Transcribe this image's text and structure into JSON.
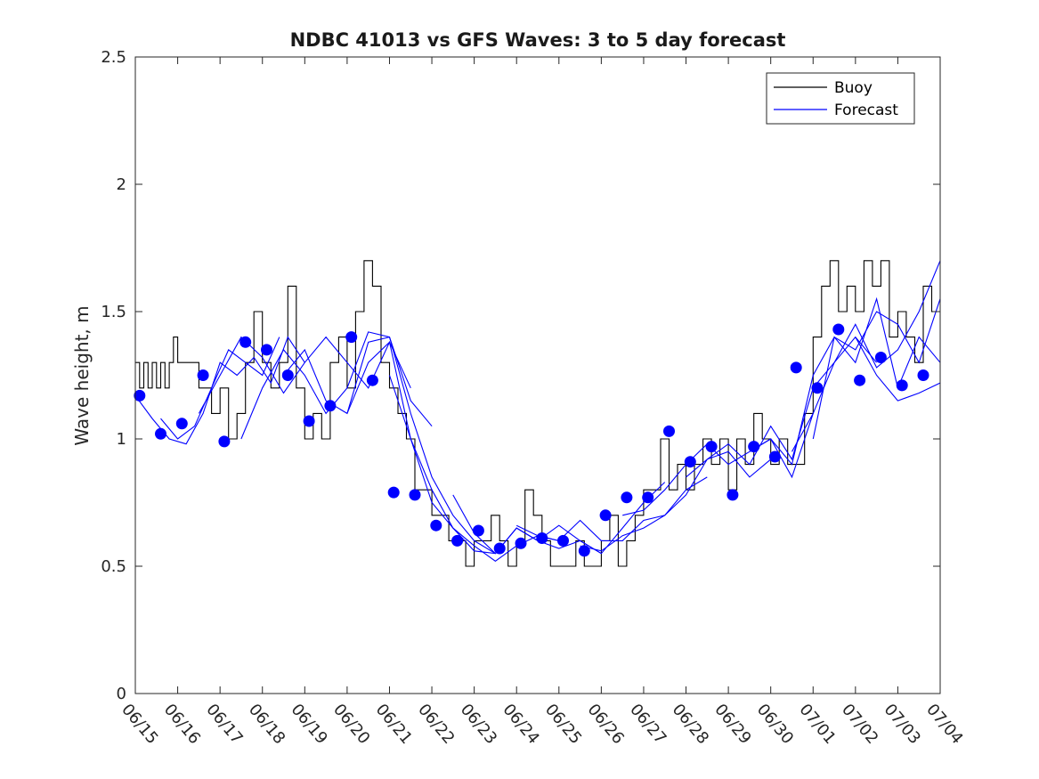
{
  "chart_data": {
    "type": "line",
    "title": "NDBC 41013 vs GFS Waves: 3 to 5 day forecast",
    "xlabel": "",
    "ylabel": "Wave height, m",
    "xlim": [
      0,
      19
    ],
    "ylim": [
      0,
      2.5
    ],
    "yticks": [
      0,
      0.5,
      1,
      1.5,
      2,
      2.5
    ],
    "ytick_labels": [
      "0",
      "0.5",
      "1",
      "1.5",
      "2",
      "2.5"
    ],
    "xtick_labels": [
      "06/15",
      "06/16",
      "06/17",
      "06/18",
      "06/19",
      "06/20",
      "06/21",
      "06/22",
      "06/23",
      "06/24",
      "06/25",
      "06/26",
      "06/27",
      "06/28",
      "06/29",
      "06/30",
      "07/01",
      "07/02",
      "07/03",
      "07/04"
    ],
    "grid": false,
    "legend_position": "top-right",
    "colors": {
      "buoy": "#000000",
      "forecast": "#0000ff",
      "marker": "#0000ff",
      "axis": "#262626"
    },
    "legend": [
      {
        "label": "Buoy",
        "series": "buoy"
      },
      {
        "label": "Forecast",
        "series": "forecast"
      }
    ],
    "buoy": {
      "name": "Buoy",
      "x": [
        0.0,
        0.1,
        0.2,
        0.3,
        0.4,
        0.5,
        0.6,
        0.7,
        0.8,
        0.9,
        1.0,
        1.2,
        1.4,
        1.5,
        1.6,
        1.8,
        2.0,
        2.2,
        2.4,
        2.6,
        2.8,
        3.0,
        3.2,
        3.4,
        3.6,
        3.8,
        4.0,
        4.2,
        4.4,
        4.6,
        4.8,
        5.0,
        5.2,
        5.4,
        5.6,
        5.8,
        6.0,
        6.2,
        6.4,
        6.6,
        6.8,
        7.0,
        7.2,
        7.4,
        7.6,
        7.8,
        8.0,
        8.2,
        8.4,
        8.6,
        8.8,
        9.0,
        9.2,
        9.4,
        9.6,
        9.8,
        10.0,
        10.2,
        10.4,
        10.6,
        10.8,
        11.0,
        11.2,
        11.4,
        11.6,
        11.8,
        12.0,
        12.2,
        12.4,
        12.6,
        12.8,
        13.0,
        13.2,
        13.4,
        13.6,
        13.8,
        14.0,
        14.2,
        14.4,
        14.6,
        14.8,
        15.0,
        15.2,
        15.4,
        15.6,
        15.8,
        16.0,
        16.2,
        16.4,
        16.6,
        16.8,
        17.0,
        17.2,
        17.4,
        17.6,
        17.8,
        18.0,
        18.2,
        18.4,
        18.6,
        18.8,
        19.0
      ],
      "y": [
        1.3,
        1.2,
        1.3,
        1.2,
        1.3,
        1.2,
        1.3,
        1.2,
        1.3,
        1.4,
        1.3,
        1.3,
        1.3,
        1.2,
        1.2,
        1.1,
        1.2,
        1.0,
        1.1,
        1.3,
        1.5,
        1.3,
        1.2,
        1.3,
        1.6,
        1.2,
        1.0,
        1.1,
        1.0,
        1.3,
        1.4,
        1.2,
        1.5,
        1.7,
        1.6,
        1.3,
        1.2,
        1.1,
        1.0,
        0.8,
        0.8,
        0.7,
        0.7,
        0.6,
        0.6,
        0.5,
        0.6,
        0.6,
        0.7,
        0.6,
        0.5,
        0.6,
        0.8,
        0.7,
        0.6,
        0.5,
        0.5,
        0.5,
        0.6,
        0.5,
        0.5,
        0.6,
        0.7,
        0.5,
        0.6,
        0.7,
        0.8,
        0.8,
        1.0,
        0.8,
        0.9,
        0.8,
        0.9,
        1.0,
        0.9,
        1.0,
        0.8,
        1.0,
        0.9,
        1.1,
        1.0,
        0.9,
        1.0,
        0.9,
        0.9,
        1.1,
        1.4,
        1.6,
        1.7,
        1.5,
        1.6,
        1.5,
        1.7,
        1.6,
        1.7,
        1.4,
        1.5,
        1.4,
        1.3,
        1.6,
        1.5,
        1.5
      ]
    },
    "forecast_series": [
      {
        "x": [
          0.6,
          1.0,
          1.4,
          1.8,
          2.2,
          2.6,
          3.0,
          3.4
        ],
        "y": [
          1.08,
          1.0,
          1.05,
          1.2,
          1.35,
          1.3,
          1.25,
          1.4
        ]
      },
      {
        "x": [
          0.0,
          0.4,
          0.8,
          1.2,
          1.6,
          2.0,
          2.4,
          2.8,
          3.2,
          3.6,
          4.0
        ],
        "y": [
          1.17,
          1.08,
          1.0,
          0.98,
          1.1,
          1.3,
          1.25,
          1.32,
          1.22,
          1.4,
          1.3
        ]
      },
      {
        "x": [
          1.5,
          2.0,
          2.5,
          3.0,
          3.5,
          4.0,
          4.5,
          5.0,
          5.5,
          6.0,
          6.5
        ],
        "y": [
          1.1,
          1.25,
          1.4,
          1.32,
          1.18,
          1.3,
          1.4,
          1.3,
          1.2,
          1.38,
          1.2
        ]
      },
      {
        "x": [
          2.5,
          3.0,
          3.5,
          4.0,
          4.5,
          5.0,
          5.5,
          6.0,
          6.5,
          7.0
        ],
        "y": [
          1.0,
          1.2,
          1.35,
          1.25,
          1.1,
          1.2,
          1.42,
          1.4,
          1.15,
          1.05
        ]
      },
      {
        "x": [
          3.5,
          4.0,
          4.5,
          5.0,
          5.5,
          6.0,
          6.5,
          7.0,
          7.5,
          8.0,
          8.5
        ],
        "y": [
          1.25,
          1.35,
          1.15,
          1.1,
          1.38,
          1.4,
          1.1,
          0.85,
          0.7,
          0.6,
          0.55
        ]
      },
      {
        "x": [
          5.0,
          5.5,
          6.0,
          6.5,
          7.0,
          7.5,
          8.0,
          8.5,
          9.0,
          9.5,
          10.0
        ],
        "y": [
          1.1,
          1.3,
          1.38,
          1.0,
          0.8,
          0.65,
          0.58,
          0.52,
          0.58,
          0.62,
          0.6
        ]
      },
      {
        "x": [
          6.0,
          6.5,
          7.0,
          7.5,
          8.0,
          8.5,
          9.0,
          9.5,
          10.0,
          10.5,
          11.0
        ],
        "y": [
          1.25,
          1.0,
          0.75,
          0.65,
          0.56,
          0.55,
          0.65,
          0.6,
          0.57,
          0.6,
          0.55
        ]
      },
      {
        "x": [
          7.5,
          8.0,
          8.5,
          9.0,
          9.5,
          10.0,
          10.5,
          11.0,
          11.5,
          12.0,
          12.5
        ],
        "y": [
          0.78,
          0.63,
          0.55,
          0.65,
          0.6,
          0.66,
          0.6,
          0.55,
          0.65,
          0.75,
          0.83
        ]
      },
      {
        "x": [
          9.0,
          9.5,
          10.0,
          10.5,
          11.0,
          11.5,
          12.0,
          12.5,
          13.0,
          13.5
        ],
        "y": [
          0.66,
          0.62,
          0.6,
          0.68,
          0.6,
          0.6,
          0.68,
          0.7,
          0.8,
          0.85
        ]
      },
      {
        "x": [
          10.5,
          11.0,
          11.5,
          12.0,
          12.5,
          13.0,
          13.5,
          14.0,
          14.5,
          15.0
        ],
        "y": [
          0.58,
          0.56,
          0.62,
          0.65,
          0.7,
          0.78,
          0.92,
          0.95,
          0.85,
          0.92
        ]
      },
      {
        "x": [
          11.5,
          12.0,
          12.5,
          13.0,
          13.5,
          14.0,
          14.5,
          15.0,
          15.5,
          16.0
        ],
        "y": [
          0.7,
          0.72,
          0.8,
          0.9,
          0.98,
          0.9,
          0.95,
          1.0,
          0.85,
          1.1
        ]
      },
      {
        "x": [
          13.0,
          13.5,
          14.0,
          14.5,
          15.0,
          15.5,
          16.0,
          16.5,
          17.0,
          17.5
        ],
        "y": [
          0.85,
          0.92,
          0.98,
          0.9,
          1.05,
          0.92,
          1.2,
          1.3,
          1.4,
          1.3
        ]
      },
      {
        "x": [
          14.5,
          15.0,
          15.5,
          16.0,
          16.5,
          17.0,
          17.5,
          18.0,
          18.5,
          19.0
        ],
        "y": [
          0.95,
          1.0,
          0.9,
          1.25,
          1.4,
          1.35,
          1.5,
          1.45,
          1.3,
          1.55
        ]
      },
      {
        "x": [
          15.5,
          16.0,
          16.5,
          17.0,
          17.5,
          18.0,
          18.5,
          19.0
        ],
        "y": [
          0.95,
          1.1,
          1.3,
          1.45,
          1.28,
          1.35,
          1.5,
          1.7
        ]
      },
      {
        "x": [
          16.0,
          16.5,
          17.0,
          17.5,
          18.0,
          18.5,
          19.0
        ],
        "y": [
          1.0,
          1.4,
          1.3,
          1.55,
          1.2,
          1.4,
          1.3
        ]
      },
      {
        "x": [
          17.0,
          17.5,
          18.0,
          18.5,
          19.0
        ],
        "y": [
          1.4,
          1.25,
          1.15,
          1.18,
          1.22
        ]
      }
    ],
    "forecast_points": {
      "x": [
        0.1,
        0.6,
        1.1,
        1.6,
        2.1,
        2.6,
        3.1,
        3.6,
        4.1,
        4.6,
        5.1,
        5.6,
        6.1,
        6.6,
        7.1,
        7.6,
        8.1,
        8.6,
        9.1,
        9.6,
        10.1,
        10.6,
        11.1,
        11.6,
        12.1,
        12.6,
        13.1,
        13.6,
        14.1,
        14.6,
        15.1,
        15.6,
        16.1,
        16.6,
        17.1,
        17.6,
        18.1,
        18.6
      ],
      "y": [
        1.17,
        1.02,
        1.06,
        1.25,
        0.99,
        1.38,
        1.35,
        1.25,
        1.07,
        1.13,
        1.4,
        1.23,
        0.79,
        0.78,
        0.66,
        0.6,
        0.64,
        0.57,
        0.59,
        0.61,
        0.6,
        0.56,
        0.7,
        0.77,
        0.77,
        1.03,
        0.91,
        0.97,
        0.78,
        0.97,
        0.93,
        1.28,
        1.2,
        1.43,
        1.23,
        1.32,
        1.21,
        1.25
      ]
    }
  }
}
